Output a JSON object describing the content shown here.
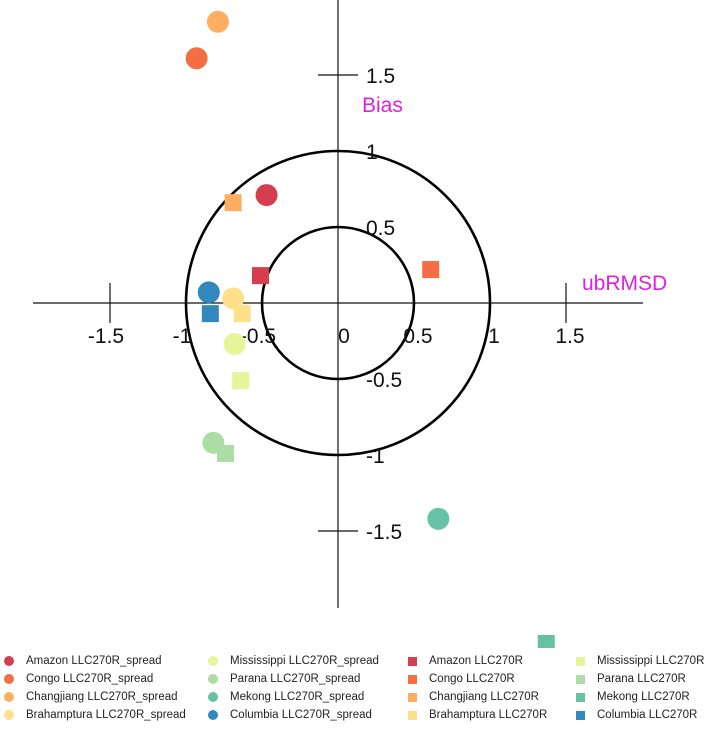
{
  "chart_data": {
    "type": "scatter",
    "xlabel": "ubRMSD",
    "ylabel": "Bias",
    "xlim": [
      -2.0,
      2.0
    ],
    "ylim": [
      -2.0,
      2.0
    ],
    "grid": false,
    "legend_position": "bottom",
    "x_ticks": [
      {
        "value": -1.5,
        "label": "-1.5"
      },
      {
        "value": -1.0,
        "label": "-1"
      },
      {
        "value": -0.5,
        "label": "-0.5"
      },
      {
        "value": 0.0,
        "label": "0"
      },
      {
        "value": 0.5,
        "label": "0.5"
      },
      {
        "value": 1.0,
        "label": "1"
      },
      {
        "value": 1.5,
        "label": "1.5"
      }
    ],
    "y_ticks": [
      {
        "value": 1.5,
        "label": "1.5"
      },
      {
        "value": 1.0,
        "label": "1"
      },
      {
        "value": 0.5,
        "label": "0.5"
      },
      {
        "value": -0.5,
        "label": "-0.5"
      },
      {
        "value": -1.0,
        "label": "-1"
      },
      {
        "value": -1.5,
        "label": "-1.5"
      }
    ],
    "reference_circles": [
      0.5,
      1.0
    ],
    "series": [
      {
        "name": "Amazon LLC270R_spread",
        "marker": "circle",
        "color": "#d53e4f",
        "x": -0.47,
        "y": 0.71
      },
      {
        "name": "Congo LLC270R_spread",
        "marker": "circle",
        "color": "#f46d43",
        "x": -0.93,
        "y": 1.61
      },
      {
        "name": "Changjiang LLC270R_spread",
        "marker": "circle",
        "color": "#fdae61",
        "x": -0.79,
        "y": 1.85
      },
      {
        "name": "Brahamptura LLC270R_spread",
        "marker": "circle",
        "color": "#fee08b",
        "x": -0.69,
        "y": 0.03
      },
      {
        "name": "Mississippi LLC270R_spread",
        "marker": "circle",
        "color": "#e6f598",
        "x": -0.68,
        "y": -0.27
      },
      {
        "name": "Parana LLC270R_spread",
        "marker": "circle",
        "color": "#abdda4",
        "x": -0.82,
        "y": -0.92
      },
      {
        "name": "Mekong LLC270R_spread",
        "marker": "circle",
        "color": "#66c2a5",
        "x": 0.66,
        "y": -1.42
      },
      {
        "name": "Columbia LLC270R_spread",
        "marker": "circle",
        "color": "#3288bd",
        "x": -0.85,
        "y": 0.07
      },
      {
        "name": "Amazon LLC270R",
        "marker": "square",
        "color": "#d53e4f",
        "x": -0.51,
        "y": 0.18
      },
      {
        "name": "Congo LLC270R",
        "marker": "square",
        "color": "#f46d43",
        "x": 0.61,
        "y": 0.22
      },
      {
        "name": "Changjiang LLC270R",
        "marker": "square",
        "color": "#fdae61",
        "x": -0.69,
        "y": 0.66
      },
      {
        "name": "Brahamptura LLC270R",
        "marker": "square",
        "color": "#fee08b",
        "x": -0.63,
        "y": -0.07
      },
      {
        "name": "Mississippi LLC270R",
        "marker": "square",
        "color": "#e6f598",
        "x": -0.64,
        "y": -0.51
      },
      {
        "name": "Parana LLC270R",
        "marker": "square",
        "color": "#abdda4",
        "x": -0.74,
        "y": -0.99
      },
      {
        "name": "Mekong LLC270R",
        "marker": "square",
        "color": "#66c2a5",
        "x": 1.37,
        "y": -2.24
      },
      {
        "name": "Columbia LLC270R",
        "marker": "square",
        "color": "#3288bd",
        "x": -0.84,
        "y": -0.07
      }
    ]
  }
}
